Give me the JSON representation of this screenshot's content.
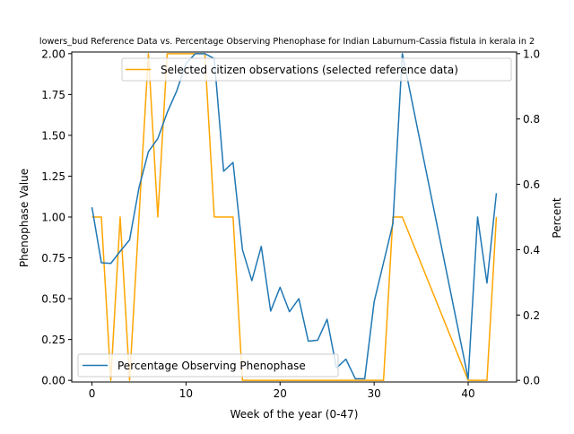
{
  "chart_data": {
    "type": "line",
    "title": "lowers_bud Reference Data vs. Percentage Observing Phenophase for Indian Laburnum-Cassia fistula in kerala in 2",
    "xlabel": "Week of the year (0-47)",
    "ylabel_left": "Phenophase Value",
    "ylabel_right": "Percent",
    "xlim": [
      -2.15,
      45.15
    ],
    "ylim_left": [
      -0.01,
      2.01
    ],
    "ylim_right": [
      -0.005,
      1.005
    ],
    "xticks": [
      0,
      10,
      20,
      30,
      40
    ],
    "yticks_left": [
      "0.00",
      "0.25",
      "0.50",
      "0.75",
      "1.00",
      "1.25",
      "1.50",
      "1.75",
      "2.00"
    ],
    "yticks_right": [
      "0.0",
      "0.2",
      "0.4",
      "0.6",
      "0.8",
      "1.0"
    ],
    "grid": false,
    "series": [
      {
        "name": "Selected citizen observations (selected reference data)",
        "axis": "left",
        "color": "#ffa500",
        "legend_position": "top-right",
        "x": [
          0,
          1,
          2,
          3,
          4,
          5,
          6,
          7,
          8,
          9,
          10,
          11,
          12,
          13,
          14,
          15,
          16,
          17,
          18,
          19,
          20,
          21,
          22,
          23,
          24,
          25,
          26,
          27,
          28,
          29,
          30,
          31,
          32,
          33,
          40,
          41,
          42,
          43
        ],
        "values": [
          1,
          1,
          0,
          1,
          0,
          1,
          2,
          1,
          2,
          2,
          2,
          2,
          2,
          1,
          1,
          1,
          0,
          0,
          0,
          0,
          0,
          0,
          0,
          0,
          0,
          0,
          0,
          0,
          0,
          0,
          0,
          0,
          1,
          1,
          0,
          0,
          0,
          1
        ]
      },
      {
        "name": "Percentage Observing Phenophase",
        "axis": "right",
        "color": "#1f77b4",
        "legend_position": "bottom-left",
        "x": [
          0,
          1,
          2,
          3,
          4,
          5,
          6,
          7,
          8,
          9,
          10,
          11,
          12,
          13,
          14,
          15,
          16,
          17,
          18,
          19,
          20,
          21,
          22,
          23,
          24,
          25,
          26,
          27,
          28,
          29,
          30,
          31,
          32,
          33,
          40,
          41,
          42,
          43
        ],
        "values": [
          0.53,
          0.36,
          0.358,
          0.395,
          0.43,
          0.59,
          0.7,
          0.74,
          0.82,
          0.885,
          0.97,
          1.0,
          1.0,
          0.985,
          0.64,
          0.667,
          0.4,
          0.305,
          0.41,
          0.212,
          0.285,
          0.21,
          0.25,
          0.12,
          0.123,
          0.187,
          0.038,
          0.065,
          0.005,
          0.005,
          0.24,
          0.36,
          0.48,
          1.0,
          0.005,
          0.5,
          0.298,
          0.573
        ]
      }
    ]
  }
}
